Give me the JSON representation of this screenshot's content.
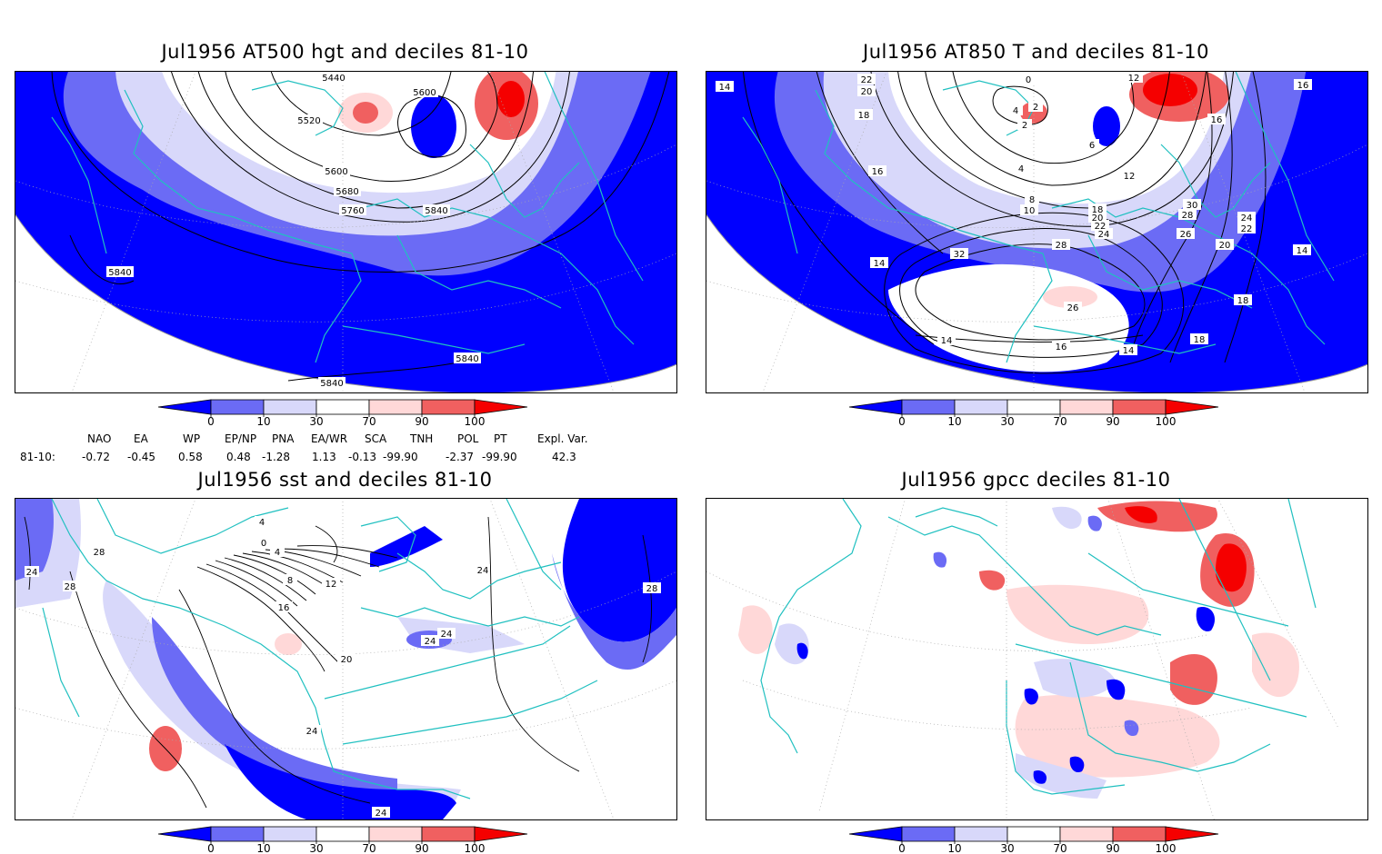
{
  "panels": [
    {
      "title": "Jul1956 AT500 hgt and deciles 81-10",
      "contour_labels": [
        "5440",
        "5600",
        "5520",
        "5600",
        "5680",
        "5760",
        "5840",
        "5840",
        "5840",
        "5840"
      ]
    },
    {
      "title": "Jul1956 AT850 T and deciles 81-10",
      "contour_labels": [
        "22",
        "20",
        "18",
        "0",
        "12",
        "4",
        "2",
        "2",
        "6",
        "16",
        "14",
        "16",
        "4",
        "8",
        "10",
        "12",
        "30",
        "28",
        "26",
        "24",
        "22",
        "20",
        "18",
        "16",
        "32",
        "14",
        "14",
        "14",
        "18",
        "14",
        "18",
        "24",
        "22",
        "20",
        "16",
        "28",
        "26"
      ]
    },
    {
      "title": "Jul1956 sst and deciles 81-10",
      "contour_labels": [
        "24",
        "28",
        "28",
        "4",
        "0",
        "4",
        "8",
        "12",
        "16",
        "20",
        "24",
        "24",
        "24",
        "24",
        "28",
        "24"
      ]
    },
    {
      "title": "Jul1956 gpcc deciles 81-10",
      "contour_labels": []
    }
  ],
  "colorbar": {
    "ticks": [
      "0",
      "10",
      "30",
      "70",
      "90",
      "100"
    ],
    "colors": [
      "#0000ff",
      "#6b6bf5",
      "#d8d8fa",
      "#ffffff",
      "#ffd8d8",
      "#f06060",
      "#f50000"
    ]
  },
  "indices": {
    "headers": [
      "NAO",
      "EA",
      "WP",
      "EP/NP",
      "PNA",
      "EA/WR",
      "SCA",
      "TNH",
      "POL",
      "PT",
      "Expl. Var."
    ],
    "row_label": "81-10:",
    "values": [
      "-0.72",
      "-0.45",
      "0.58",
      "0.48",
      "-1.28",
      "1.13",
      "-0.13",
      "-99.90",
      "-2.37",
      "-99.90",
      "42.3"
    ]
  }
}
